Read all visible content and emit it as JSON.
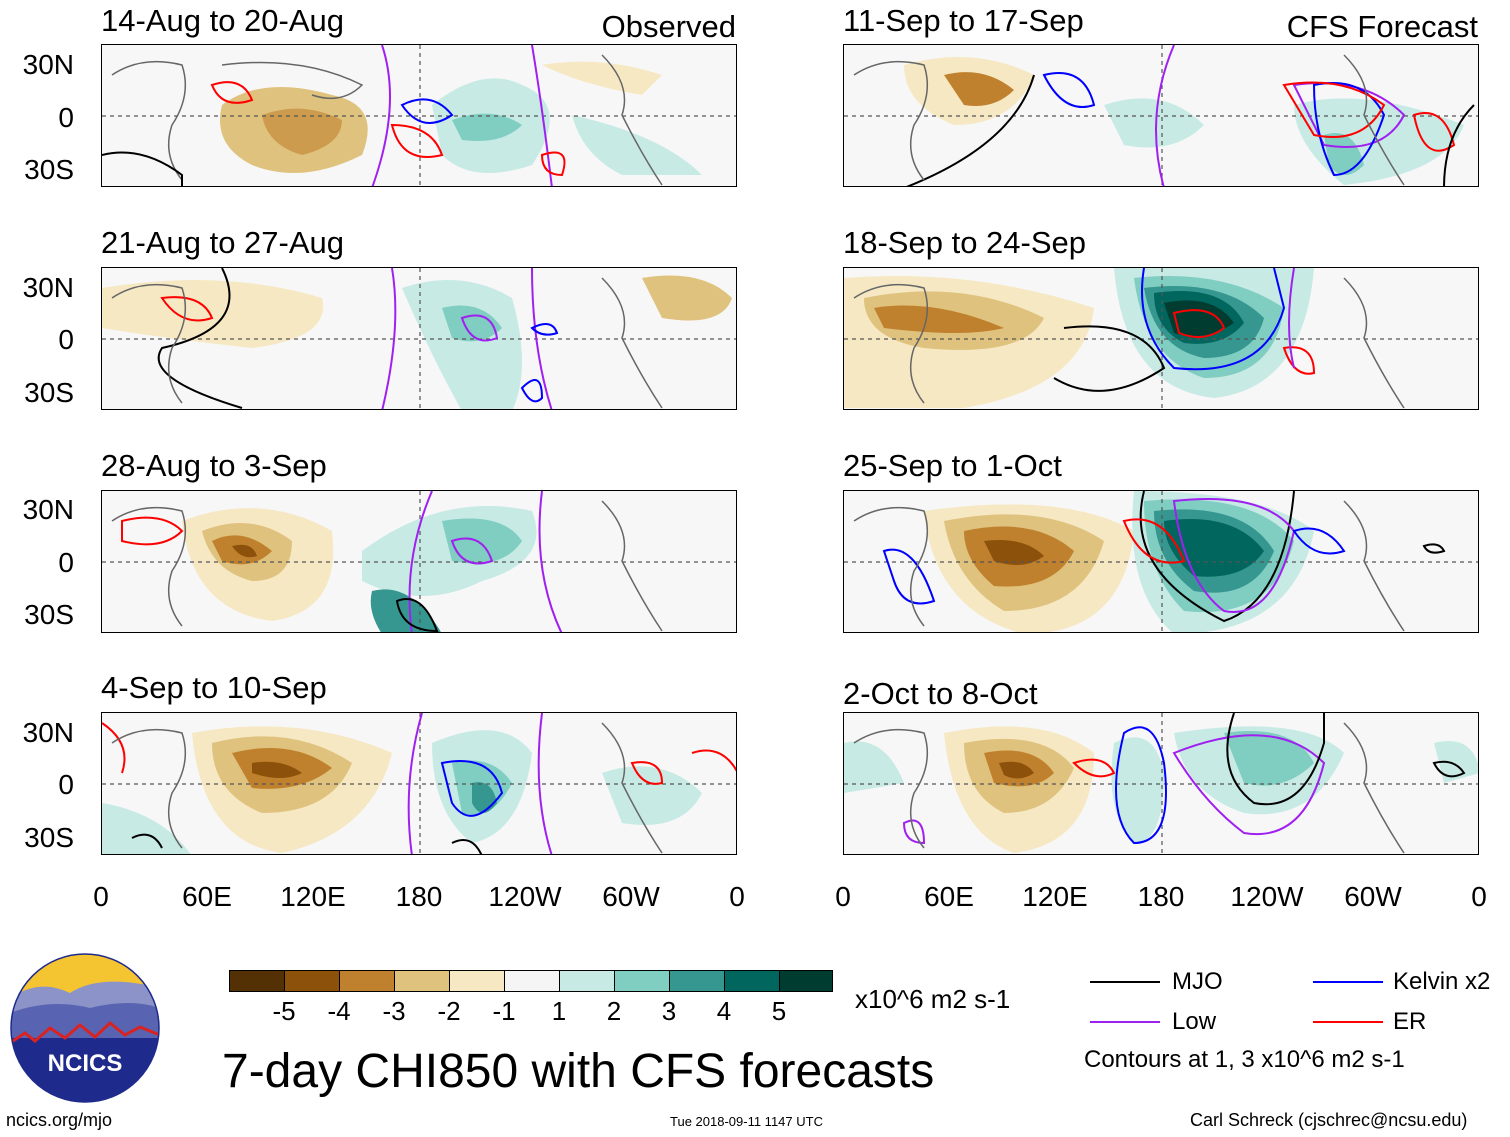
{
  "main_title": "7-day CHI850 with CFS forecasts",
  "left_column_label": "Observed",
  "right_column_label": "CFS Forecast",
  "lat_labels": [
    "30N",
    "0",
    "30S"
  ],
  "lon_labels": [
    "0",
    "60E",
    "120E",
    "180",
    "120W",
    "60W",
    "0"
  ],
  "panels_left": [
    {
      "title": "14-Aug to 20-Aug"
    },
    {
      "title": "21-Aug to 27-Aug"
    },
    {
      "title": "28-Aug to 3-Sep"
    },
    {
      "title": "4-Sep to 10-Sep"
    }
  ],
  "panels_right": [
    {
      "title": "11-Sep to 17-Sep"
    },
    {
      "title": "18-Sep to 24-Sep"
    },
    {
      "title": "25-Sep to 1-Oct"
    },
    {
      "title": "2-Oct to 8-Oct"
    }
  ],
  "colorbar": {
    "ticks": [
      "-5",
      "-4",
      "-3",
      "-2",
      "-1",
      "1",
      "2",
      "3",
      "4",
      "5"
    ],
    "colors": [
      "#543005",
      "#8c510a",
      "#bf812d",
      "#dfc27d",
      "#f6e8c3",
      "#f5f5f5",
      "#c7eae5",
      "#80cdc1",
      "#35978f",
      "#01665e",
      "#003c30"
    ],
    "units": "x10^6 m2 s-1"
  },
  "legend": {
    "items": [
      {
        "label": "MJO",
        "color": "#000000"
      },
      {
        "label": "Kelvin x2",
        "color": "#0000ff"
      },
      {
        "label": "Low",
        "color": "#a020f0"
      },
      {
        "label": "ER",
        "color": "#ff0000"
      }
    ],
    "contours_note": "Contours at 1, 3 x10^6 m2 s-1"
  },
  "logo_text": "NCICS",
  "footer": {
    "url": "ncics.org/mjo",
    "timestamp": "Tue 2018-09-11 1147 UTC",
    "credit": "Carl Schreck (cjschrec@ncsu.edu)"
  }
}
